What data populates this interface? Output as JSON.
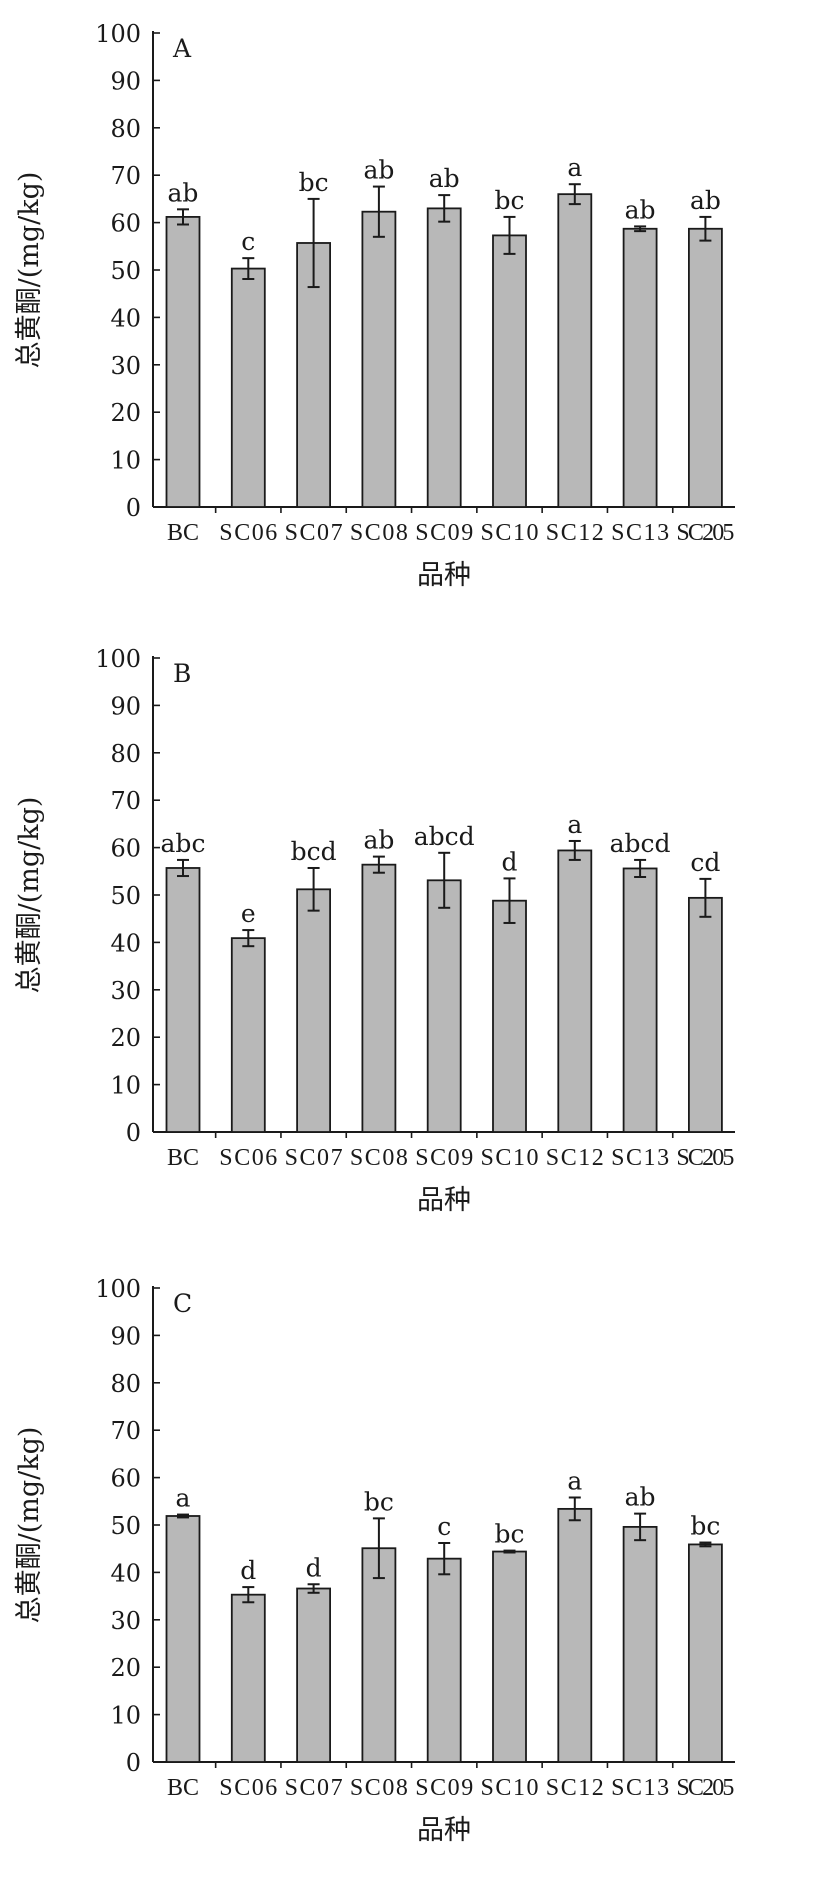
{
  "chart_data": [
    {
      "type": "bar",
      "panel": "A",
      "categories": [
        "BC",
        "SC06",
        "SC07",
        "SC08",
        "SC09",
        "SC10",
        "SC12",
        "SC13",
        "SC205"
      ],
      "values": [
        61.2,
        50.3,
        55.7,
        62.3,
        63.0,
        57.3,
        66.0,
        58.7,
        58.7
      ],
      "errors": [
        1.6,
        2.2,
        9.3,
        5.3,
        2.8,
        3.9,
        2.1,
        0.5,
        2.5
      ],
      "labels": [
        "ab",
        "c",
        "bc",
        "ab",
        "ab",
        "bc",
        "a",
        "ab",
        "ab"
      ],
      "xlabel": "品种",
      "ylabel": "总黄酮/(mg/kg)",
      "ylim": [
        0,
        100
      ],
      "yticks": [
        0,
        10,
        20,
        30,
        40,
        50,
        60,
        70,
        80,
        90,
        100
      ],
      "grid": false
    },
    {
      "type": "bar",
      "panel": "B",
      "categories": [
        "BC",
        "SC06",
        "SC07",
        "SC08",
        "SC09",
        "SC10",
        "SC12",
        "SC13",
        "SC205"
      ],
      "values": [
        55.7,
        40.9,
        51.2,
        56.4,
        53.1,
        48.8,
        59.4,
        55.6,
        49.4
      ],
      "errors": [
        1.7,
        1.7,
        4.5,
        1.7,
        5.8,
        4.7,
        2.0,
        1.8,
        4.0
      ],
      "labels": [
        "abc",
        "e",
        "bcd",
        "ab",
        "abcd",
        "d",
        "a",
        "abcd",
        "cd"
      ],
      "xlabel": "品种",
      "ylabel": "总黄酮/(mg/kg)",
      "ylim": [
        0,
        100
      ],
      "yticks": [
        0,
        10,
        20,
        30,
        40,
        50,
        60,
        70,
        80,
        90,
        100
      ],
      "grid": false
    },
    {
      "type": "bar",
      "panel": "C",
      "categories": [
        "BC",
        "SC06",
        "SC07",
        "SC08",
        "SC09",
        "SC10",
        "SC12",
        "SC13",
        "SC205"
      ],
      "values": [
        51.9,
        35.3,
        36.6,
        45.1,
        42.9,
        44.4,
        53.4,
        49.6,
        45.9
      ],
      "errors": [
        0.3,
        1.6,
        0.9,
        6.3,
        3.3,
        0.2,
        2.4,
        2.8,
        0.4
      ],
      "labels": [
        "a",
        "d",
        "d",
        "bc",
        "c",
        "bc",
        "a",
        "ab",
        "bc"
      ],
      "xlabel": "品种",
      "ylabel": "总黄酮/(mg/kg)",
      "ylim": [
        0,
        100
      ],
      "yticks": [
        0,
        10,
        20,
        30,
        40,
        50,
        60,
        70,
        80,
        90,
        100
      ],
      "grid": false
    }
  ],
  "colors": {
    "bar_fill": "#b8b8b8",
    "bar_stroke": "#1a1a1a",
    "axis": "#1a1a1a"
  }
}
